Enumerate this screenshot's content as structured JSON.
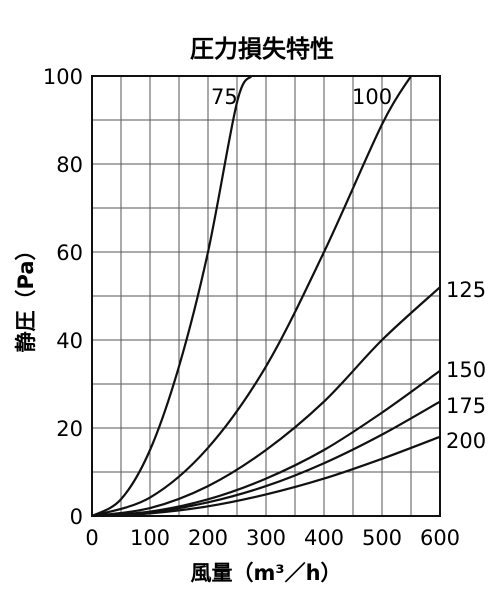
{
  "chart_data": {
    "type": "line",
    "title": "圧力損失特性",
    "xlabel": "風量（m³／h）",
    "ylabel": "静圧（Pa）",
    "xlim": [
      0,
      600
    ],
    "ylim": [
      0,
      100
    ],
    "x_ticks": [
      "0",
      "100",
      "200",
      "300",
      "400",
      "500",
      "600"
    ],
    "y_ticks": [
      "0",
      "20",
      "40",
      "60",
      "80",
      "100"
    ],
    "grid": true,
    "x_minor_step": 50,
    "y_minor_step": 10,
    "series": [
      {
        "name": "75",
        "x": [
          0,
          50,
          100,
          150,
          200,
          250,
          275
        ],
        "y": [
          0,
          3.8,
          15,
          34,
          60,
          94,
          100
        ]
      },
      {
        "name": "100",
        "x": [
          0,
          100,
          200,
          300,
          400,
          500,
          550
        ],
        "y": [
          0,
          4.2,
          15.5,
          34,
          60,
          89,
          100
        ]
      },
      {
        "name": "125",
        "x": [
          0,
          100,
          200,
          300,
          400,
          500,
          600
        ],
        "y": [
          0,
          1.8,
          6.8,
          15,
          26,
          40,
          52
        ]
      },
      {
        "name": "150",
        "x": [
          0,
          100,
          200,
          300,
          400,
          500,
          600
        ],
        "y": [
          0,
          1.0,
          3.8,
          8.5,
          15,
          23.5,
          33
        ]
      },
      {
        "name": "175",
        "x": [
          0,
          100,
          200,
          300,
          400,
          500,
          600
        ],
        "y": [
          0,
          0.8,
          3.1,
          6.8,
          12,
          18.5,
          26
        ]
      },
      {
        "name": "200",
        "x": [
          0,
          100,
          200,
          300,
          400,
          500,
          600
        ],
        "y": [
          0,
          0.6,
          2.2,
          4.9,
          8.5,
          13,
          18
        ]
      }
    ]
  }
}
